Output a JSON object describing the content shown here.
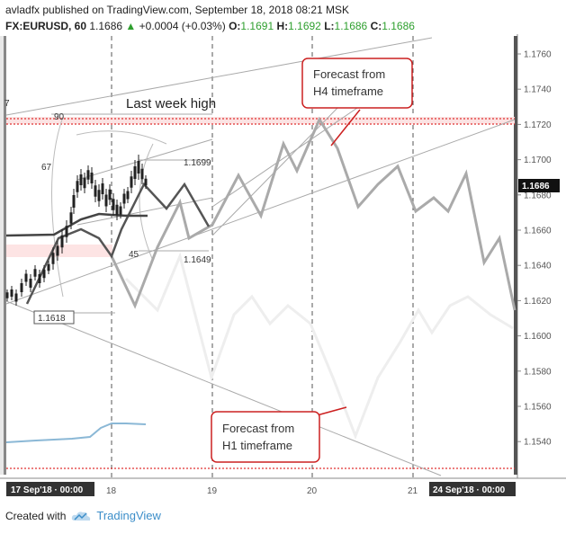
{
  "header": {
    "author": "avladfx",
    "published_text": "published on TradingView.com, September 18, 2018 08:21 MSK",
    "symbol": "FX:EURUSD, 60",
    "last": "1.1686",
    "change": "+0.0004 (+0.03%)",
    "o_label": "O:",
    "o": "1.1691",
    "h_label": "H:",
    "h": "1.1692",
    "l_label": "L:",
    "l": "1.1686",
    "c_label": "C:",
    "c": "1.1686"
  },
  "footer": {
    "created_with": "Created with",
    "brand": "TradingView"
  },
  "chart_data": {
    "type": "line",
    "y_axis": {
      "ticks": [
        "1.1760",
        "1.1740",
        "1.1720",
        "1.1700",
        "1.1680",
        "1.1660",
        "1.1640",
        "1.1620",
        "1.1600",
        "1.1580",
        "1.1560",
        "1.1540"
      ],
      "current_price": "1.1686"
    },
    "x_axis": {
      "labels": [
        "17 Sep'18 · 00:00",
        "18",
        "19",
        "20",
        "21",
        "24 Sep'18 · 00:00"
      ]
    },
    "annotations": {
      "last_week_high": "Last week high",
      "forecast_h4": [
        "Forecast from",
        "H4 timeframe"
      ],
      "forecast_h1": [
        "Forecast from",
        "H1 timeframe"
      ],
      "price_1699": "1.1699",
      "price_1649": "1.1649",
      "price_1618": "1.1618",
      "fib_90": "90",
      "fib_67": "67",
      "fib_45": "45",
      "edge_7": "7"
    },
    "colors": {
      "resistance": "#e03030",
      "blue_line": "#8bb8d6",
      "h4_forecast": "#aaaaaa",
      "h1_forecast": "#eeeeee",
      "dark_path": "#444444"
    }
  }
}
